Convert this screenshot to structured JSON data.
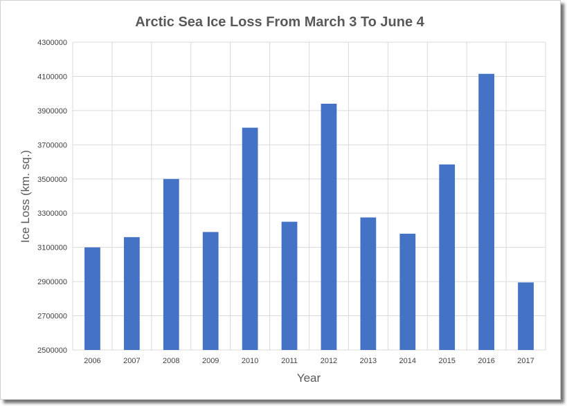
{
  "chart_data": {
    "type": "bar",
    "title": "Arctic Sea Ice Loss From March 3 To June 4",
    "xlabel": "Year",
    "ylabel": "Ice Loss (km. sq.)",
    "categories": [
      "2006",
      "2007",
      "2008",
      "2009",
      "2010",
      "2011",
      "2012",
      "2013",
      "2014",
      "2015",
      "2016",
      "2017"
    ],
    "series": [
      {
        "values": [
          3100000,
          3160000,
          3500000,
          3190000,
          3800000,
          3250000,
          3940000,
          3275000,
          3180000,
          3585000,
          4115000,
          2895000
        ],
        "color": "#4472C4"
      }
    ],
    "ylim": [
      2500000,
      4300000
    ],
    "yticks": [
      "2500000",
      "2700000",
      "2900000",
      "3100000",
      "3300000",
      "3500000",
      "3700000",
      "3900000",
      "4100000",
      "4300000"
    ],
    "grid": true,
    "legend": "none"
  }
}
